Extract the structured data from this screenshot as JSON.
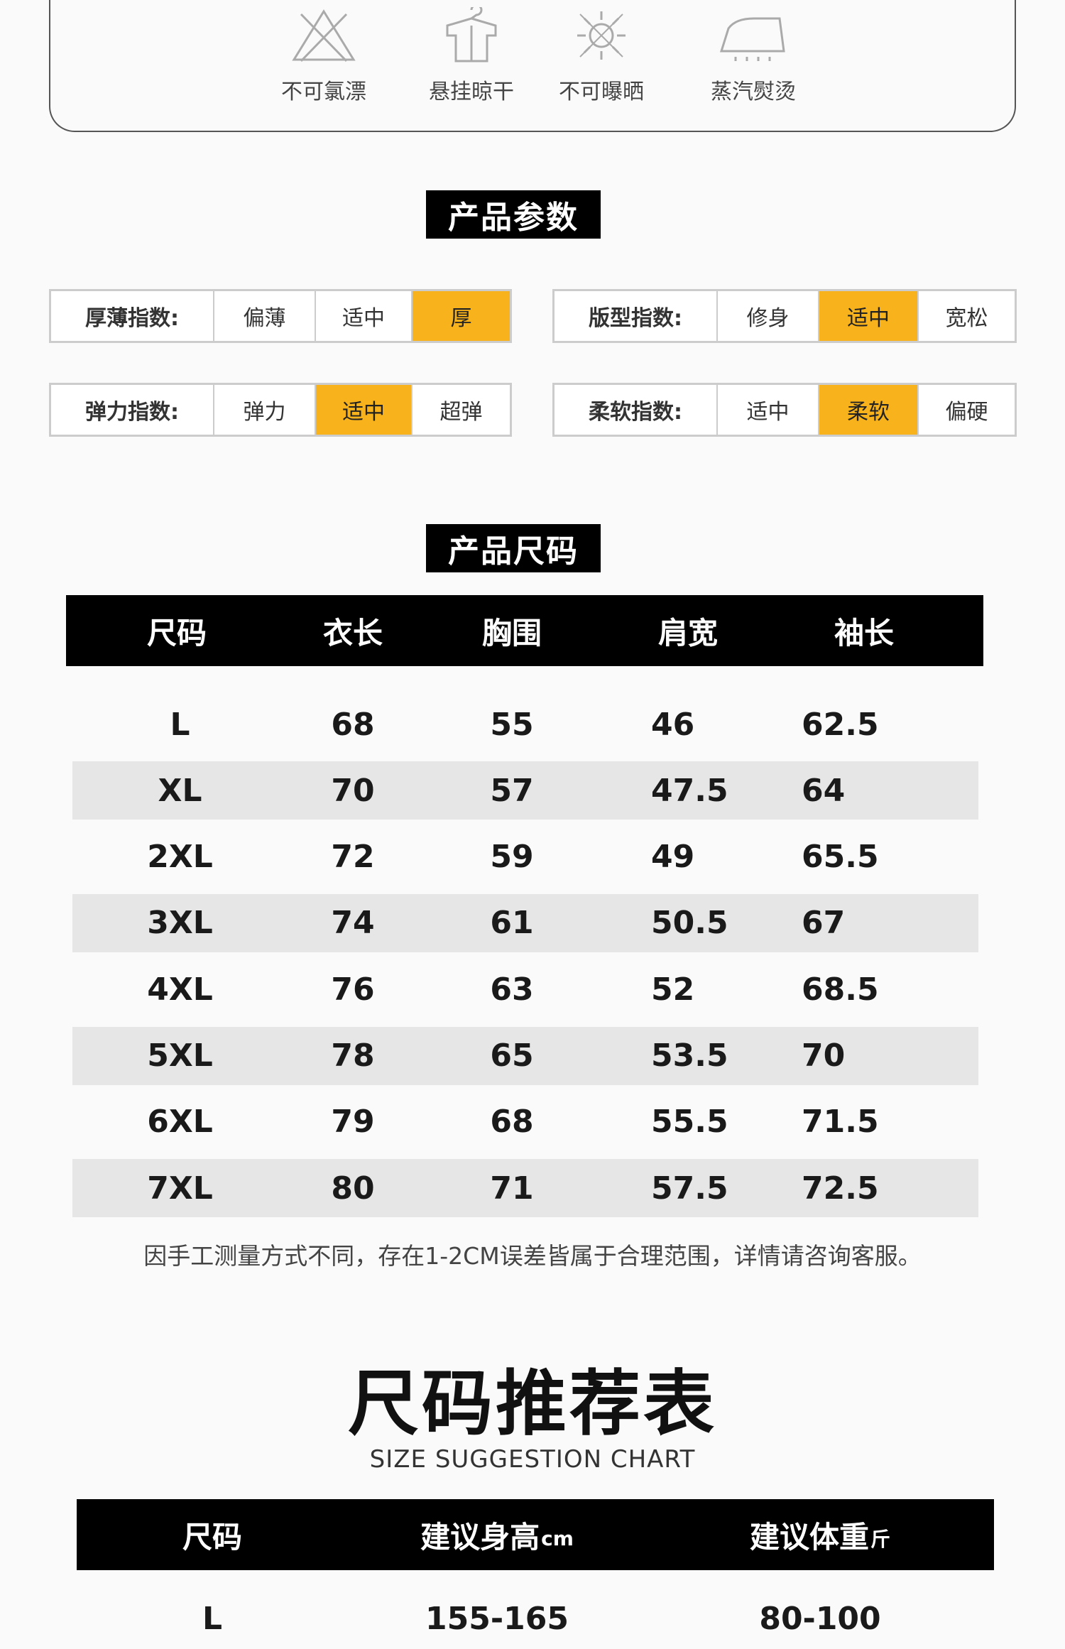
{
  "care": {
    "items": [
      {
        "icon": "no-bleach-icon",
        "label": "不可氯漂"
      },
      {
        "icon": "hang-dry-icon",
        "label": "悬挂晾干"
      },
      {
        "icon": "no-sun-icon",
        "label": "不可曝晒"
      },
      {
        "icon": "steam-iron-icon",
        "label": "蒸汽熨烫"
      }
    ]
  },
  "params": {
    "heading": "产品参数",
    "thickness": {
      "key": "厚薄指数:",
      "options": [
        "偏薄",
        "适中",
        "厚"
      ],
      "selected": "厚"
    },
    "fit": {
      "key": "版型指数:",
      "options": [
        "修身",
        "适中",
        "宽松"
      ],
      "selected": "适中"
    },
    "elasticity": {
      "key": "弹力指数:",
      "options": [
        "弹力",
        "适中",
        "超弹"
      ],
      "selected": "适中"
    },
    "softness": {
      "key": "柔软指数:",
      "options": [
        "适中",
        "柔软",
        "偏硬"
      ],
      "selected": "柔软"
    },
    "highlight_color": "#f7b21c"
  },
  "size_table": {
    "heading": "产品尺码",
    "columns": [
      "尺码",
      "衣长",
      "胸围",
      "肩宽",
      "袖长"
    ],
    "rows": [
      [
        "L",
        "68",
        "55",
        "46",
        "62.5"
      ],
      [
        "XL",
        "70",
        "57",
        "47.5",
        "64"
      ],
      [
        "2XL",
        "72",
        "59",
        "49",
        "65.5"
      ],
      [
        "3XL",
        "74",
        "61",
        "50.5",
        "67"
      ],
      [
        "4XL",
        "76",
        "63",
        "52",
        "68.5"
      ],
      [
        "5XL",
        "78",
        "65",
        "53.5",
        "70"
      ],
      [
        "6XL",
        "79",
        "68",
        "55.5",
        "71.5"
      ],
      [
        "7XL",
        "80",
        "71",
        "57.5",
        "72.5"
      ]
    ],
    "note": "因手工测量方式不同，存在1-2CM误差皆属于合理范围，详情请咨询客服。"
  },
  "suggestion": {
    "title": "尺码推荐表",
    "subtitle": "SIZE SUGGESTION CHART",
    "columns": {
      "size": "尺码",
      "height": "建议身高",
      "height_unit": "cm",
      "weight": "建议体重",
      "weight_unit": "斤"
    },
    "rows": [
      [
        "L",
        "155-165",
        "80-100"
      ]
    ]
  }
}
